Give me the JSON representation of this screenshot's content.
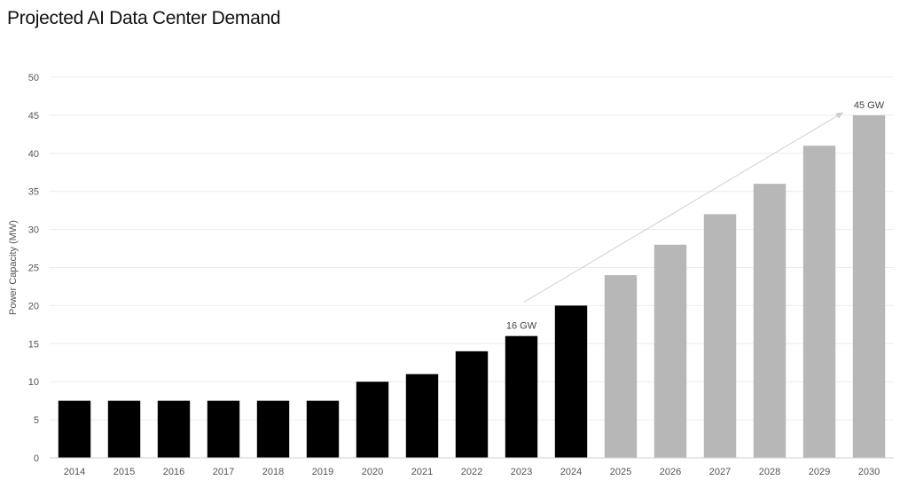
{
  "title": "Projected AI Data Center Demand",
  "chart_data": {
    "type": "bar",
    "ylabel": "Power Capacity (MW)",
    "xlabel": "",
    "ylim": [
      0,
      50
    ],
    "yticks": [
      0,
      5,
      10,
      15,
      20,
      25,
      30,
      35,
      40,
      45,
      50
    ],
    "grid": true,
    "categories": [
      "2014",
      "2015",
      "2016",
      "2017",
      "2018",
      "2019",
      "2020",
      "2021",
      "2022",
      "2023",
      "2024",
      "2025",
      "2026",
      "2027",
      "2028",
      "2029",
      "2030"
    ],
    "values": [
      7.5,
      7.5,
      7.5,
      7.5,
      7.5,
      7.5,
      10,
      11,
      14,
      16,
      20,
      24,
      28,
      32,
      36,
      41,
      45
    ],
    "bar_colors": [
      "#000000",
      "#000000",
      "#000000",
      "#000000",
      "#000000",
      "#000000",
      "#000000",
      "#000000",
      "#000000",
      "#000000",
      "#000000",
      "#b7b7b7",
      "#b7b7b7",
      "#b7b7b7",
      "#b7b7b7",
      "#b7b7b7",
      "#b7b7b7"
    ],
    "annotations": [
      {
        "category": "2023",
        "value": 16,
        "text": "16 GW"
      },
      {
        "category": "2030",
        "value": 45,
        "text": "45 GW"
      }
    ],
    "trend_arrow": {
      "from": {
        "category": "2023",
        "value": 20
      },
      "to": {
        "category": "2030",
        "value": 45.5
      }
    }
  }
}
